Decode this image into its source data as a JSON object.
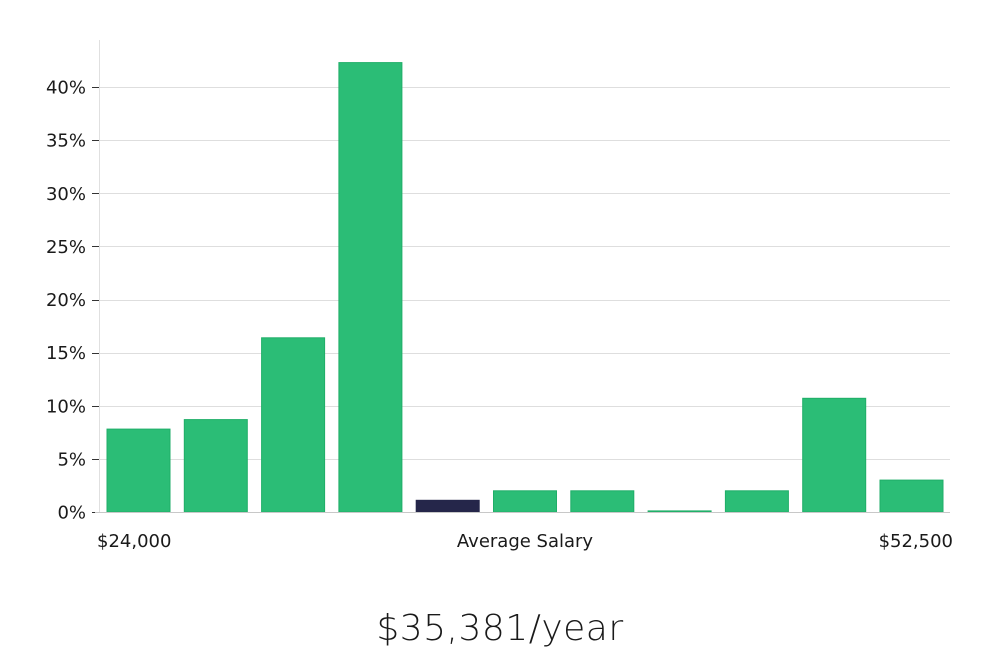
{
  "chart_data": {
    "type": "bar",
    "title": "",
    "xlabel": "Average Salary",
    "ylabel": "",
    "x_min_label": "$24,000",
    "x_max_label": "$52,500",
    "ylim": [
      0,
      45
    ],
    "yticks": [
      0,
      5,
      10,
      15,
      20,
      25,
      30,
      35,
      40
    ],
    "ytick_labels": [
      "0%",
      "5%",
      "10%",
      "15%",
      "20%",
      "25%",
      "30%",
      "35%",
      "40%"
    ],
    "values": [
      7.8,
      8.7,
      16.4,
      42.3,
      1.1,
      2.0,
      2.0,
      0.1,
      2.0,
      10.7,
      3.0
    ],
    "highlight_index": 4,
    "bar_color": "#2bbd76",
    "bar_edge_color": "#1fae68",
    "highlight_color": "#25264a",
    "grid": true
  },
  "summary": {
    "salary_text": "$35,381/year"
  }
}
